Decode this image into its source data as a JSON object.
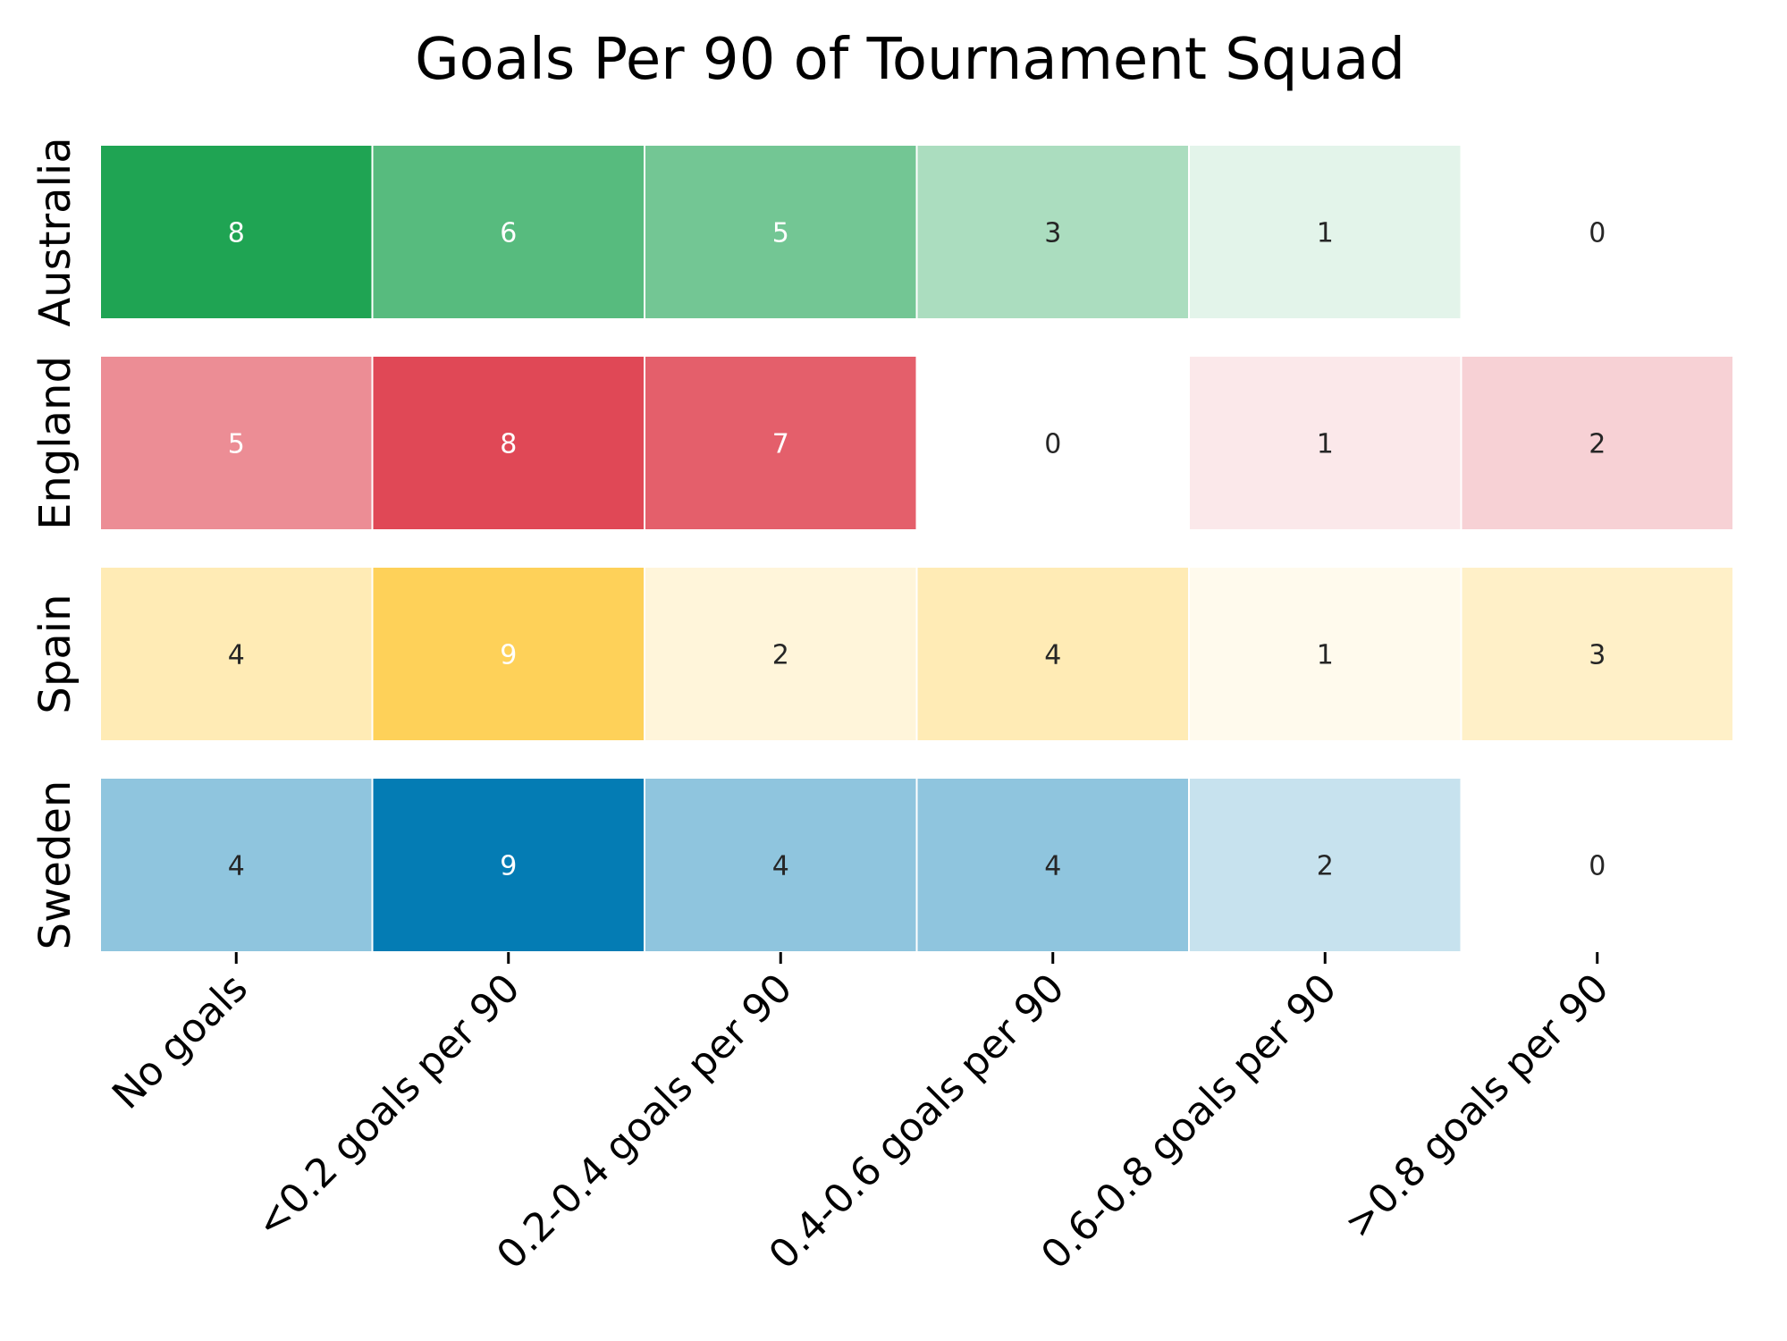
{
  "chart_data": {
    "type": "heatmap",
    "title": "Goals Per 90 of Tournament Squad",
    "xlabel": "",
    "ylabel": "",
    "grid": false,
    "legend": "none",
    "columns": [
      "No goals",
      "<0.2 goals per 90",
      "0.2-0.4 goals per 90",
      "0.4-0.6 goals per 90",
      "0.6-0.8 goals per 90",
      ">0.8 goals per 90"
    ],
    "rows": [
      {
        "label": "Australia",
        "values": [
          8,
          6,
          5,
          3,
          1,
          0
        ],
        "color": "#1fa453"
      },
      {
        "label": "England",
        "values": [
          5,
          8,
          7,
          0,
          1,
          2
        ],
        "color": "#e04856"
      },
      {
        "label": "Spain",
        "values": [
          4,
          9,
          2,
          4,
          1,
          3
        ],
        "color": "#fed159"
      },
      {
        "label": "Sweden",
        "values": [
          4,
          9,
          4,
          4,
          2,
          0
        ],
        "color": "#047cb4"
      }
    ],
    "palette_mapping": "each row uses its own sequential scale from white (0) to the row color (row maximum)",
    "annotation_colors": {
      "dark": "#262626",
      "light": "#ffffff"
    }
  }
}
